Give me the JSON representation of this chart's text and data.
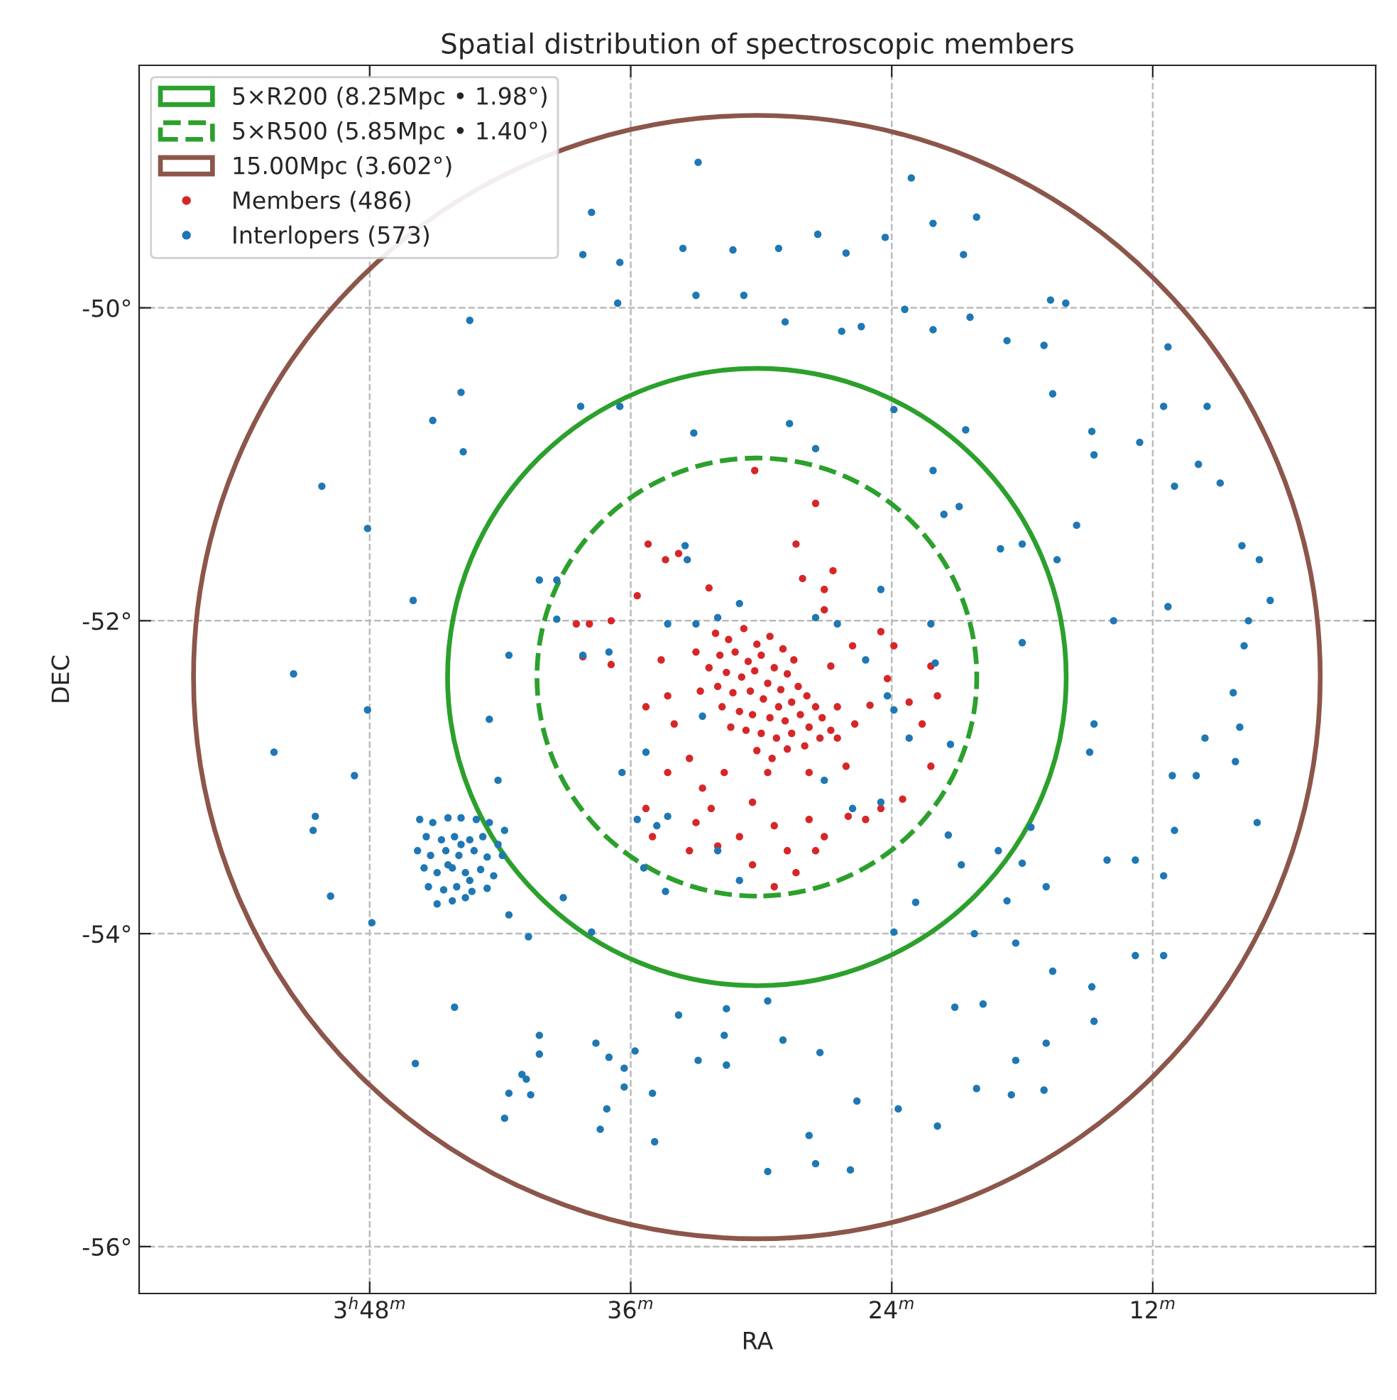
{
  "chart_data": {
    "type": "scatter",
    "title": "Spatial distribution of spectroscopic members",
    "xlabel": "RA",
    "ylabel": "DEC",
    "xlim": [
      58.6,
      1.75
    ],
    "ylim": [
      -56.3,
      -48.45
    ],
    "xticks": [
      {
        "value": 48,
        "label": "3$^{h}$48$^{m}$"
      },
      {
        "value": 36,
        "label": "36$^{m}$"
      },
      {
        "value": 24,
        "label": "24$^{m}$"
      },
      {
        "value": 12,
        "label": "12$^{m}$"
      }
    ],
    "yticks": [
      {
        "value": -50,
        "label": "-50°"
      },
      {
        "value": -52,
        "label": "-52°"
      },
      {
        "value": -54,
        "label": "-54°"
      },
      {
        "value": -56,
        "label": "-56°"
      }
    ],
    "grid": true,
    "legend": "top left",
    "marker": "circle",
    "annotations": [
      "5×R200 (8.25Mpc • 1.98°)",
      "5×R500 (5.85Mpc • 1.40°)",
      "15.00Mpc (3.602°)"
    ],
    "series": [
      {
        "name": "Members (486)",
        "color": "#d62728",
        "x": [
          32.1,
          31.5,
          30.8,
          30.2,
          29.6,
          29.0,
          28.5,
          31.9,
          31.2,
          30.6,
          30.0,
          29.4,
          28.8,
          32.4,
          31.6,
          30.9,
          30.3,
          29.7,
          29.1,
          28.3,
          32.0,
          31.3,
          30.5,
          29.9,
          29.2,
          28.6,
          27.9,
          31.8,
          31.0,
          30.4,
          29.6,
          28.9,
          28.2,
          27.5,
          31.4,
          30.7,
          30.0,
          29.3,
          28.6,
          27.8,
          27.2,
          30.2,
          29.5,
          28.8,
          28.0,
          27.3,
          26.8,
          33.0,
          32.8,
          26.5,
          35.2,
          30.3,
          28.4,
          27.5,
          26.7,
          34.4,
          33.8,
          32.4,
          28.1,
          27.1,
          38.5,
          38.2,
          36.9,
          35.7,
          34.6,
          34.3,
          35.3,
          34.0,
          33.3,
          34.3,
          35.3,
          35.0,
          33.0,
          32.3,
          32.0,
          31.0,
          30.4,
          29.4,
          28.8,
          27.8,
          27.1,
          28.4,
          27.5,
          26.0,
          25.2,
          24.5,
          23.5,
          22.2,
          22.6,
          23.2,
          24.2,
          25.8,
          23.9,
          22.2,
          21.9,
          26.1,
          26.5,
          27.8,
          29.7,
          31.7,
          32.7,
          33.3,
          30.4,
          29.4,
          27.1,
          24.5,
          25.0,
          25.7,
          36.9,
          37.9,
          26.8
        ],
        "values": [
          -52.08,
          -52.12,
          -52.05,
          -52.15,
          -52.1,
          -52.18,
          -52.25,
          -52.22,
          -52.2,
          -52.26,
          -52.22,
          -52.3,
          -52.34,
          -52.3,
          -52.33,
          -52.36,
          -52.32,
          -52.4,
          -52.44,
          -52.42,
          -52.42,
          -52.46,
          -52.45,
          -52.5,
          -52.55,
          -52.52,
          -52.48,
          -52.55,
          -52.58,
          -52.6,
          -52.62,
          -52.64,
          -52.6,
          -52.55,
          -52.68,
          -52.7,
          -52.72,
          -52.75,
          -52.72,
          -52.68,
          -52.62,
          -52.83,
          -52.88,
          -52.82,
          -52.8,
          -52.75,
          -52.7,
          -52.2,
          -52.45,
          -52.55,
          -51.51,
          -51.04,
          -51.51,
          -51.25,
          -51.68,
          -51.61,
          -51.57,
          -51.79,
          -51.73,
          -51.8,
          -52.02,
          -52.23,
          -52.28,
          -51.84,
          -52.25,
          -52.48,
          -52.55,
          -52.66,
          -52.88,
          -52.97,
          -53.2,
          -53.38,
          -53.29,
          -53.2,
          -53.44,
          -53.38,
          -53.16,
          -53.31,
          -53.47,
          -53.27,
          -53.38,
          -53.61,
          -53.47,
          -53.25,
          -53.27,
          -53.2,
          -53.14,
          -52.93,
          -52.66,
          -52.52,
          -52.37,
          -52.16,
          -52.16,
          -52.29,
          -52.48,
          -52.93,
          -52.75,
          -52.97,
          -52.97,
          -52.97,
          -53.07,
          -53.47,
          -53.56,
          -53.7,
          -51.93,
          -52.07,
          -52.54,
          -52.66,
          -52.0,
          -52.02,
          -52.29
        ]
      },
      {
        "name": "Interlopers (573)",
        "color": "#1f77b4",
        "x": [
          32.9,
          37.8,
          23.1,
          36.5,
          38.2,
          33.6,
          31.3,
          29.2,
          27.4,
          26.1,
          24.3,
          22.1,
          20.1,
          20.7,
          33.0,
          36.6,
          30.8,
          28.9,
          26.3,
          25.4,
          23.4,
          22.1,
          20.4,
          16.7,
          16.0,
          17.0,
          11.3,
          18.7,
          43.4,
          43.8,
          45.1,
          43.7,
          38.3,
          36.5,
          33.1,
          28.7,
          27.5,
          23.9,
          20.6,
          22.1,
          16.6,
          14.8,
          11.5,
          9.5,
          12.6,
          9.9,
          11.0,
          8.9,
          14.7,
          15.5,
          16.4,
          18.0,
          19.0,
          20.9,
          21.6,
          13.8,
          11.3,
          8.3,
          7.8,
          7.6,
          7.9,
          7.1,
          6.6,
          50.2,
          48.1,
          46.0,
          51.5,
          52.4,
          48.1,
          48.7,
          50.5,
          50.6,
          49.8,
          47.9,
          45.9,
          44.1,
          41.8,
          41.6,
          40.6,
          40.8,
          40.2,
          40.2,
          41.0,
          37.6,
          37.0,
          36.3,
          35.8,
          36.3,
          35.0,
          37.1,
          37.4,
          34.9,
          33.8,
          32.9,
          31.7,
          31.6,
          29.7,
          29.0,
          29.7,
          27.3,
          27.8,
          27.5,
          25.9,
          25.6,
          23.7,
          21.9,
          20.1,
          18.5,
          17.0,
          16.9,
          18.3,
          21.1,
          19.8,
          18.3,
          16.6,
          14.7,
          14.8,
          14.1,
          12.8,
          11.5,
          11.0,
          11.1,
          10.0,
          7.2,
          8.2,
          9.6,
          8.0,
          14.9,
          14.7,
          11.5,
          12.8,
          20.2,
          23.9,
          22.9,
          20.8,
          19.1,
          18.7,
          16.9,
          18.0,
          17.6,
          21.4,
          21.3,
          18.0,
          22.0,
          31.6,
          40.7,
          41.6,
          39.1,
          37.8,
          35.4,
          34.4,
          35.7,
          36.4,
          42.1,
          42.5,
          41.6,
          40.2,
          39.4,
          39.4,
          38.2,
          37.0,
          33.5,
          33.4,
          34.3,
          24.5,
          22.2,
          33.0,
          32.0,
          31.0,
          27.5,
          26.5,
          25.2,
          24.2,
          23.9,
          23.2,
          34.3,
          34.8,
          27.1,
          25.8,
          24.5,
          32.7,
          35.3,
          32.0,
          31.0,
          45.7,
          45.1,
          44.4,
          43.8,
          43.1,
          42.5,
          41.8,
          45.4,
          44.7,
          44.1,
          43.4,
          42.8,
          42.1,
          45.8,
          45.2,
          44.5,
          43.9,
          43.2,
          42.6,
          41.9,
          45.5,
          44.9,
          44.2,
          43.6,
          42.9,
          42.3,
          45.3,
          44.6,
          44.0,
          43.3,
          42.6,
          44.2,
          43.6,
          44.9,
          43.8,
          44.4,
          43.4
        ],
        "values": [
          -49.07,
          -49.39,
          -49.17,
          -49.71,
          -49.66,
          -49.62,
          -49.63,
          -49.62,
          -49.53,
          -49.65,
          -49.55,
          -49.46,
          -49.42,
          -49.66,
          -49.92,
          -49.97,
          -49.92,
          -50.09,
          -50.15,
          -50.12,
          -50.01,
          -50.14,
          -50.06,
          -49.95,
          -49.97,
          -50.24,
          -50.25,
          -50.21,
          -50.08,
          -50.54,
          -50.72,
          -50.92,
          -50.63,
          -50.63,
          -50.8,
          -50.74,
          -50.9,
          -50.65,
          -50.78,
          -51.04,
          -50.55,
          -50.79,
          -50.63,
          -50.63,
          -50.86,
          -51.0,
          -51.14,
          -51.12,
          -50.94,
          -51.39,
          -51.61,
          -51.51,
          -51.54,
          -51.27,
          -51.32,
          -52.0,
          -51.91,
          -52.46,
          -52.16,
          -52.0,
          -51.52,
          -51.61,
          -51.87,
          -51.14,
          -51.41,
          -51.87,
          -52.34,
          -52.84,
          -52.57,
          -52.99,
          -53.25,
          -53.34,
          -53.76,
          -53.93,
          -54.83,
          -54.47,
          -55.18,
          -55.02,
          -55.03,
          -54.93,
          -54.65,
          -54.77,
          -54.9,
          -54.7,
          -54.79,
          -54.86,
          -54.75,
          -54.98,
          -55.02,
          -55.12,
          -55.25,
          -55.33,
          -54.52,
          -54.81,
          -54.65,
          -54.84,
          -54.43,
          -54.68,
          -55.52,
          -54.76,
          -55.29,
          -55.47,
          -55.51,
          -55.07,
          -55.12,
          -55.23,
          -54.99,
          -55.03,
          -55.0,
          -54.7,
          -54.81,
          -54.47,
          -54.45,
          -54.06,
          -54.24,
          -54.56,
          -54.34,
          -53.53,
          -53.53,
          -53.63,
          -53.34,
          -52.99,
          -52.99,
          -53.29,
          -52.9,
          -52.75,
          -52.68,
          -52.84,
          -52.66,
          -54.14,
          -54.14,
          -54.0,
          -53.99,
          -53.8,
          -53.56,
          -53.47,
          -53.79,
          -53.7,
          -53.55,
          -53.32,
          -53.37,
          -52.79,
          -52.14,
          -52.27,
          -54.48,
          -54.02,
          -53.88,
          -53.77,
          -53.99,
          -53.58,
          -53.73,
          -53.27,
          -52.97,
          -53.02,
          -52.63,
          -52.22,
          -51.74,
          -51.74,
          -51.99,
          -52.22,
          -52.2,
          -51.52,
          -51.61,
          -52.02,
          -51.8,
          -52.02,
          -52.02,
          -51.98,
          -51.89,
          -51.98,
          -52.02,
          -52.25,
          -52.48,
          -52.57,
          -52.75,
          -53.25,
          -53.31,
          -53.02,
          -53.2,
          -53.16,
          -52.61,
          -52.84,
          -53.47,
          -53.66,
          -53.27,
          -53.29,
          -53.26,
          -53.26,
          -53.27,
          -53.29,
          -53.34,
          -53.38,
          -53.4,
          -53.38,
          -53.4,
          -53.38,
          -53.43,
          -53.47,
          -53.5,
          -53.47,
          -53.5,
          -53.47,
          -53.51,
          -53.5,
          -53.58,
          -53.61,
          -53.58,
          -53.61,
          -53.59,
          -53.63,
          -53.7,
          -53.72,
          -53.7,
          -53.73,
          -53.71,
          -53.79,
          -53.77,
          -53.81,
          -53.43,
          -53.56,
          -53.66
        ]
      }
    ]
  }
}
